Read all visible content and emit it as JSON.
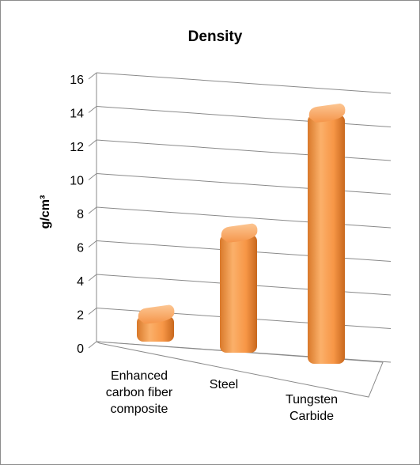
{
  "chart_data": {
    "type": "bar",
    "title": "Density",
    "ylabel": "g/cm³",
    "xlabel": "",
    "categories": [
      [
        "Enhanced",
        "carbon fiber",
        "composite"
      ],
      [
        "Steel"
      ],
      [
        "Tungsten",
        "Carbide"
      ]
    ],
    "values": [
      2,
      7.5,
      15.3
    ],
    "ylim": [
      0,
      16
    ],
    "yticks": [
      "0",
      "2",
      "4",
      "6",
      "8",
      "10",
      "12",
      "14",
      "16"
    ],
    "grid": true,
    "style": "3d-column",
    "colors": {
      "bar": "#f79646",
      "bar_light": "#fbc08a",
      "bar_dark": "#c86a1f",
      "grid": "#8a8a8a"
    }
  }
}
